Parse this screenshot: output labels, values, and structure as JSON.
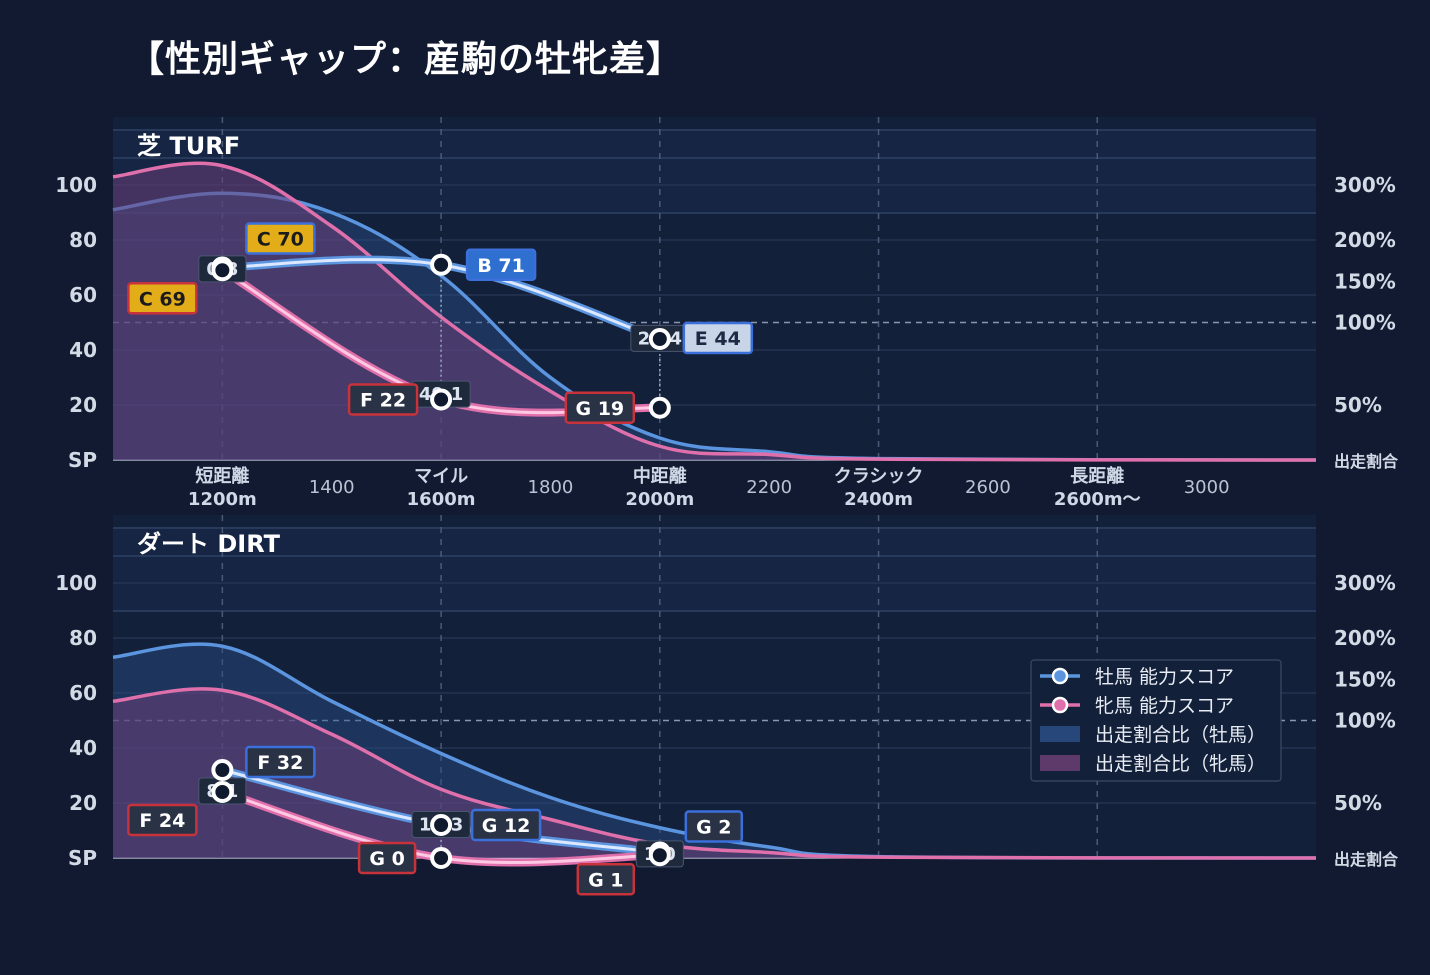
{
  "title": "【性別ギャップ：産駒の牡牝差】",
  "colors": {
    "background": "#111a30",
    "panel": "#13203a",
    "male": "#5b95e0",
    "female": "#e070ab",
    "male_line": "#dbe8ff",
    "female_line": "#ffc9e3",
    "grade_C": "#e3ad1a",
    "grade_B": "#2f6fd0",
    "grade_E": "#c8d4e8",
    "grade_F": "#2a3346",
    "grade_G": "#2a3346",
    "border_blue": "#3b6fd9",
    "border_red": "#c8323a"
  },
  "legend": {
    "items": [
      {
        "label": "牡馬 能力スコア",
        "type": "line",
        "color": "#5b95e0"
      },
      {
        "label": "牝馬 能力スコア",
        "type": "line",
        "color": "#e070ab"
      },
      {
        "label": "出走割合比（牡馬）",
        "type": "area",
        "color": "#2c4f86"
      },
      {
        "label": "出走割合比（牝馬）",
        "type": "area",
        "color": "#6b3f73"
      }
    ]
  },
  "chart_data": [
    {
      "type": "line",
      "title": "芝 TURF",
      "x_categories": [
        {
          "top": "短距離",
          "bottom": "1200m"
        },
        {
          "top": "",
          "bottom": "1400"
        },
        {
          "top": "マイル",
          "bottom": "1600m"
        },
        {
          "top": "",
          "bottom": "1800"
        },
        {
          "top": "中距離",
          "bottom": "2000m"
        },
        {
          "top": "",
          "bottom": "2200"
        },
        {
          "top": "クラシック",
          "bottom": "2400m"
        },
        {
          "top": "",
          "bottom": "2600"
        },
        {
          "top": "長距離",
          "bottom": "2600m〜"
        },
        {
          "top": "",
          "bottom": "3000"
        }
      ],
      "y_ticks": [
        "SP",
        "20",
        "40",
        "60",
        "80",
        "100"
      ],
      "y2_ticks": [
        "出走割合",
        "50%",
        "100%",
        "150%",
        "200%",
        "300%"
      ],
      "ylim": [
        0,
        120
      ],
      "series": [
        {
          "name": "牡馬 能力スコア",
          "points": [
            {
              "x": 1200,
              "y": 70,
              "grade": "C 70",
              "grade_key": "C"
            },
            {
              "x": 1600,
              "y": 71,
              "grade": "B 71",
              "grade_key": "B"
            },
            {
              "x": 2000,
              "y": 44,
              "grade": "E 44",
              "grade_key": "E"
            }
          ]
        },
        {
          "name": "牝馬 能力スコア",
          "points": [
            {
              "x": 1200,
              "y": 69,
              "grade": "C 69",
              "grade_key": "C"
            },
            {
              "x": 1600,
              "y": 22,
              "grade": "F 22",
              "grade_key": "F"
            },
            {
              "x": 2000,
              "y": 19,
              "grade": "G 19",
              "grade_key": "G"
            }
          ]
        }
      ],
      "gap_labels": [
        {
          "x": 1200,
          "text": "0.8"
        },
        {
          "x": 1600,
          "text": "49.1"
        },
        {
          "x": 2000,
          "text": "25.4"
        }
      ],
      "ratio_male": {
        "x": [
          1000,
          1200,
          1400,
          1600,
          1800,
          2000,
          2200,
          2400,
          3200
        ],
        "y": [
          91,
          97,
          90,
          67,
          30,
          8,
          3,
          0.5,
          0
        ]
      },
      "ratio_female": {
        "x": [
          1000,
          1200,
          1400,
          1600,
          1800,
          2000,
          2200,
          2400,
          3200
        ],
        "y": [
          103,
          107,
          85,
          52,
          25,
          5,
          2,
          0.3,
          0
        ]
      }
    },
    {
      "type": "line",
      "title": "ダート DIRT",
      "x_categories": [],
      "y_ticks": [
        "SP",
        "20",
        "40",
        "60",
        "80",
        "100"
      ],
      "y2_ticks": [
        "出走割合",
        "50%",
        "100%",
        "150%",
        "200%",
        "300%"
      ],
      "ylim": [
        0,
        120
      ],
      "series": [
        {
          "name": "牡馬 能力スコア",
          "points": [
            {
              "x": 1200,
              "y": 32,
              "grade": "F 32",
              "grade_key": "F"
            },
            {
              "x": 1600,
              "y": 12,
              "grade": "G 12",
              "grade_key": "G"
            },
            {
              "x": 2000,
              "y": 2,
              "grade": "G 2",
              "grade_key": "G"
            }
          ]
        },
        {
          "name": "牝馬 能力スコア",
          "points": [
            {
              "x": 1200,
              "y": 24,
              "grade": "F 24",
              "grade_key": "F"
            },
            {
              "x": 1600,
              "y": 0,
              "grade": "G 0",
              "grade_key": "G"
            },
            {
              "x": 2000,
              "y": 1,
              "grade": "G 1",
              "grade_key": "G"
            }
          ]
        }
      ],
      "gap_labels": [
        {
          "x": 1200,
          "text": "8.1"
        },
        {
          "x": 1600,
          "text": "12.3"
        },
        {
          "x": 2000,
          "text": "1.0"
        }
      ],
      "ratio_male": {
        "x": [
          1000,
          1200,
          1400,
          1600,
          1800,
          2000,
          2200,
          2400,
          3200
        ],
        "y": [
          73,
          77,
          57,
          38,
          22,
          11,
          4,
          0.5,
          0
        ]
      },
      "ratio_female": {
        "x": [
          1000,
          1200,
          1400,
          1600,
          1800,
          2000,
          2200,
          2400,
          3200
        ],
        "y": [
          57,
          61,
          45,
          25,
          14,
          5,
          2,
          0.3,
          0
        ]
      }
    }
  ]
}
